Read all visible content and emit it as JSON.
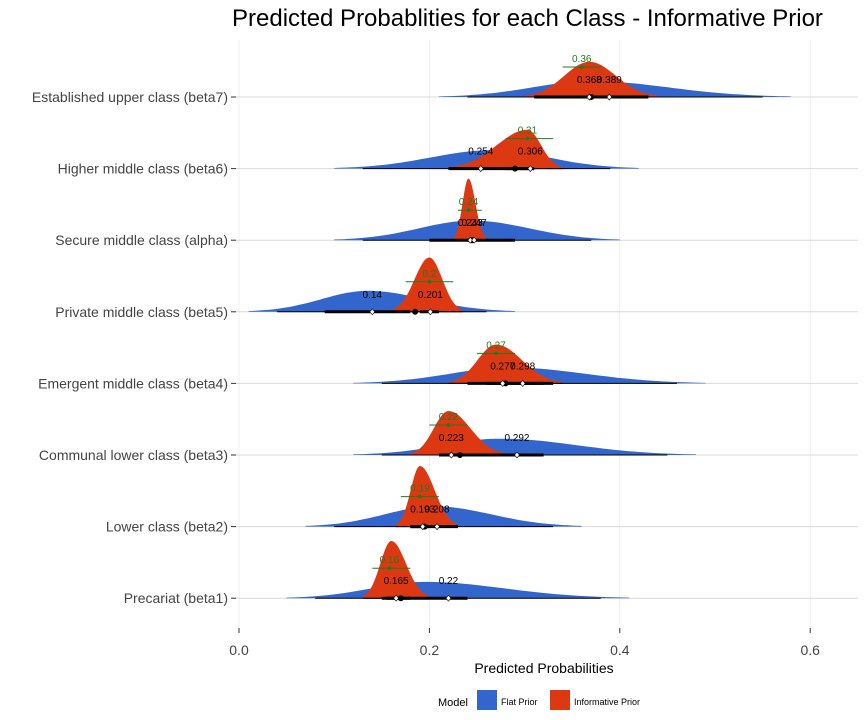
{
  "chart_data": {
    "type": "density",
    "title": "Predicted Probablities for each Class - Informative Prior",
    "xlabel": "Predicted Probabilities",
    "ylabel": "",
    "xlim": [
      0.0,
      0.65
    ],
    "xticks": [
      "0.0",
      "0.2",
      "0.4",
      "0.6"
    ],
    "grid": "horizontal",
    "legend": {
      "title": "Model",
      "position": "bottom",
      "entries": [
        {
          "name": "Flat Prior",
          "color": "#3366CC"
        },
        {
          "name": "Informative Prior",
          "color": "#DC3912"
        }
      ]
    },
    "prior_color": "#1E7B1E",
    "categories": [
      {
        "label": "Established upper class (beta7)",
        "flat": {
          "median": 0.389,
          "mean": 0.37,
          "ci50": [
            0.31,
            0.43
          ],
          "ci95": [
            0.24,
            0.55
          ]
        },
        "informative": {
          "median": 0.368,
          "mean": 0.37,
          "ci50": [
            0.355,
            0.395
          ],
          "ci95": [
            0.3,
            0.44
          ],
          "peak": 0.368
        },
        "prior": {
          "value": "0.36",
          "center": 0.36,
          "range": [
            0.34,
            0.38
          ]
        }
      },
      {
        "label": "Higher middle class (beta6)",
        "flat": {
          "median": 0.254,
          "mean": 0.29,
          "ci50": [
            0.22,
            0.31
          ],
          "ci95": [
            0.13,
            0.39
          ]
        },
        "informative": {
          "median": 0.306,
          "mean": 0.29,
          "ci50": [
            0.28,
            0.31
          ],
          "ci95": [
            0.22,
            0.34
          ],
          "peak": 0.303
        },
        "prior": {
          "value": "0.31",
          "center": 0.303,
          "range": [
            0.28,
            0.33
          ]
        }
      },
      {
        "label": "Secure middle class (alpha)",
        "flat": {
          "median": 0.243,
          "mean": 0.245,
          "ci50": [
            0.2,
            0.29
          ],
          "ci95": [
            0.13,
            0.37
          ]
        },
        "informative": {
          "median": 0.247,
          "mean": 0.245,
          "ci50": [
            0.24,
            0.25
          ],
          "ci95": [
            0.225,
            0.26
          ],
          "peak": 0.241
        },
        "prior": {
          "value": "0.24",
          "center": 0.241,
          "range": [
            0.23,
            0.255
          ]
        }
      },
      {
        "label": "Private middle class (beta5)",
        "flat": {
          "median": 0.14,
          "mean": 0.185,
          "ci50": [
            0.09,
            0.18
          ],
          "ci95": [
            0.04,
            0.26
          ]
        },
        "informative": {
          "median": 0.201,
          "mean": 0.185,
          "ci50": [
            0.19,
            0.21
          ],
          "ci95": [
            0.16,
            0.235
          ],
          "peak": 0.2
        },
        "prior": {
          "value": "0.2",
          "center": 0.2,
          "range": [
            0.175,
            0.225
          ]
        }
      },
      {
        "label": "Emergent middle class (beta4)",
        "flat": {
          "median": 0.298,
          "mean": 0.28,
          "ci50": [
            0.24,
            0.33
          ],
          "ci95": [
            0.15,
            0.46
          ]
        },
        "informative": {
          "median": 0.277,
          "mean": 0.28,
          "ci50": [
            0.26,
            0.32
          ],
          "ci95": [
            0.22,
            0.34
          ],
          "peak": 0.27
        },
        "prior": {
          "value": "0.27",
          "center": 0.27,
          "range": [
            0.25,
            0.29
          ]
        }
      },
      {
        "label": "Communal lower class (beta3)",
        "flat": {
          "median": 0.292,
          "mean": 0.232,
          "ci50": [
            0.23,
            0.32
          ],
          "ci95": [
            0.15,
            0.45
          ]
        },
        "informative": {
          "median": 0.223,
          "mean": 0.232,
          "ci50": [
            0.21,
            0.24
          ],
          "ci95": [
            0.18,
            0.28
          ],
          "peak": 0.22
        },
        "prior": {
          "value": "0.22",
          "center": 0.22,
          "range": [
            0.2,
            0.24
          ]
        }
      },
      {
        "label": "Lower class (beta2)",
        "flat": {
          "median": 0.208,
          "mean": 0.195,
          "ci50": [
            0.18,
            0.23
          ],
          "ci95": [
            0.1,
            0.33
          ]
        },
        "informative": {
          "median": 0.193,
          "mean": 0.195,
          "ci50": [
            0.18,
            0.2
          ],
          "ci95": [
            0.165,
            0.23
          ],
          "peak": 0.19
        },
        "prior": {
          "value": "0.19",
          "center": 0.19,
          "range": [
            0.17,
            0.21
          ]
        }
      },
      {
        "label": "Precariat (beta1)",
        "flat": {
          "median": 0.22,
          "mean": 0.17,
          "ci50": [
            0.15,
            0.24
          ],
          "ci95": [
            0.08,
            0.38
          ]
        },
        "informative": {
          "median": 0.165,
          "mean": 0.17,
          "ci50": [
            0.155,
            0.18
          ],
          "ci95": [
            0.13,
            0.2
          ],
          "peak": 0.16
        },
        "prior": {
          "value": "0.16",
          "center": 0.158,
          "range": [
            0.14,
            0.18
          ]
        }
      }
    ]
  }
}
